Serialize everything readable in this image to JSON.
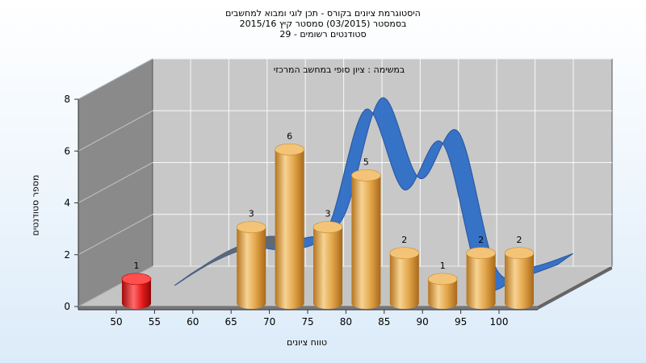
{
  "title_lines": [
    "היסטוגרמת ציונים בקורס - תכן לוגי ומבוא למחשבים",
    "בסמסטר  (03/2015)  סמסטר קיץ 2015/16",
    "סטודנטים רשומים - 29"
  ],
  "subtitle": "במשימה : ציון סופי במחשב המרכזי",
  "chart_data": {
    "type": "bar",
    "title": "היסטוגרמת ציונים בקורס - תכן לוגי ומבוא למחשבים",
    "subtitle": "במשימה : ציון סופי במחשב המרכזי",
    "xlabel": "טווח ציונים",
    "ylabel": "מספר סטודנטים",
    "x_ticks": [
      "50",
      "55",
      "60",
      "65",
      "70",
      "75",
      "80",
      "85",
      "90",
      "95",
      "100"
    ],
    "y_ticks": [
      "0",
      "2",
      "4",
      "6",
      "8"
    ],
    "ylim": [
      0,
      8
    ],
    "grid": true,
    "categories": [
      "50-55",
      "55-60",
      "60-65",
      "65-70",
      "70-75",
      "75-80",
      "80-85",
      "85-90",
      "90-95",
      "95-100",
      "100"
    ],
    "values": [
      1,
      0,
      0,
      3,
      6,
      3,
      5,
      2,
      1,
      2,
      2
    ],
    "data_labels": [
      "1",
      "",
      "",
      "3",
      "6",
      "3",
      "5",
      "2",
      "1",
      "2",
      "2"
    ],
    "curve_values": [
      0,
      0.9,
      1.45,
      1.4,
      2.2,
      6.8,
      3.7,
      5.5,
      0.2,
      0.3,
      0.8
    ],
    "colors": {
      "bar": "#e3a64a",
      "bar_first": "#e31b1b",
      "curve": "#2f6ec6",
      "curve_back": "#666666",
      "back_wall": "#c8c8c8",
      "side_wall": "#8a8a8a",
      "floor": "#a8a8a8",
      "background": "#eaf3fc"
    }
  }
}
